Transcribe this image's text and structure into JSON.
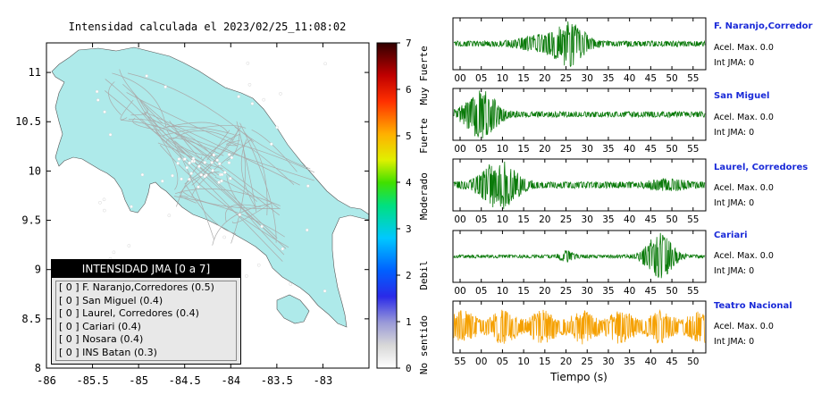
{
  "map": {
    "title": "Intensidad calculada el 2023/02/25_11:08:02",
    "x_ticks": [
      "-86",
      "-85.5",
      "-85",
      "-84.5",
      "-84",
      "-83.5",
      "-83"
    ],
    "y_ticks": [
      "11",
      "10.5",
      "10",
      "9.5",
      "9",
      "8.5",
      "8"
    ],
    "xlim": [
      -86,
      -82.5
    ],
    "ylim": [
      8,
      11.3
    ],
    "land_color": "#aeeaea"
  },
  "legend": {
    "title": "INTENSIDAD JMA [0 a 7]",
    "items": [
      "[ 0 ]  F. Naranjo,Corredores (0.5)",
      "[ 0 ]  San Miguel (0.4)",
      "[ 0 ]  Laurel, Corredores (0.4)",
      "[ 0 ]  Cariari (0.4)",
      "[ 0 ]  Nosara (0.4)",
      "[ 0 ]  INS Batan (0.3)"
    ]
  },
  "colorbar": {
    "ticks": [
      "0",
      "1",
      "2",
      "3",
      "4",
      "5",
      "6",
      "7"
    ],
    "labels": [
      "No sentido",
      "Debil",
      "Moderado",
      "Fuerte",
      "Muy Fuerte"
    ],
    "range": [
      0,
      7
    ]
  },
  "stations": [
    {
      "name": "F. Naranjo,Corredores",
      "accel": "Acel. Max. 0.0",
      "jma": "Int JMA: 0",
      "color": "#0a7a0a",
      "ticks": [
        "00",
        "05",
        "10",
        "15",
        "20",
        "25",
        "30",
        "35",
        "40",
        "45",
        "50",
        "55"
      ]
    },
    {
      "name": "San Miguel",
      "accel": "Acel. Max. 0.0",
      "jma": "Int JMA: 0",
      "color": "#0a7a0a",
      "ticks": [
        "00",
        "05",
        "10",
        "15",
        "20",
        "25",
        "30",
        "35",
        "40",
        "45",
        "50",
        "55"
      ]
    },
    {
      "name": "Laurel, Corredores",
      "accel": "Acel. Max. 0.0",
      "jma": "Int JMA: 0",
      "color": "#0a7a0a",
      "ticks": [
        "00",
        "05",
        "10",
        "15",
        "20",
        "25",
        "30",
        "35",
        "40",
        "45",
        "50",
        "55"
      ]
    },
    {
      "name": "Cariari",
      "accel": "Acel. Max. 0.0",
      "jma": "Int JMA: 0",
      "color": "#0a7a0a",
      "ticks": [
        "00",
        "05",
        "10",
        "15",
        "20",
        "25",
        "30",
        "35",
        "40",
        "45",
        "50",
        "55"
      ]
    },
    {
      "name": "Teatro Nacional",
      "accel": "Acel. Max. 0.0",
      "jma": "Int JMA: 0",
      "color": "#f5a000",
      "ticks": [
        "55",
        "00",
        "05",
        "10",
        "15",
        "20",
        "25",
        "30",
        "35",
        "40",
        "45",
        "50"
      ]
    }
  ],
  "xlabel": "Tiempo (s)"
}
